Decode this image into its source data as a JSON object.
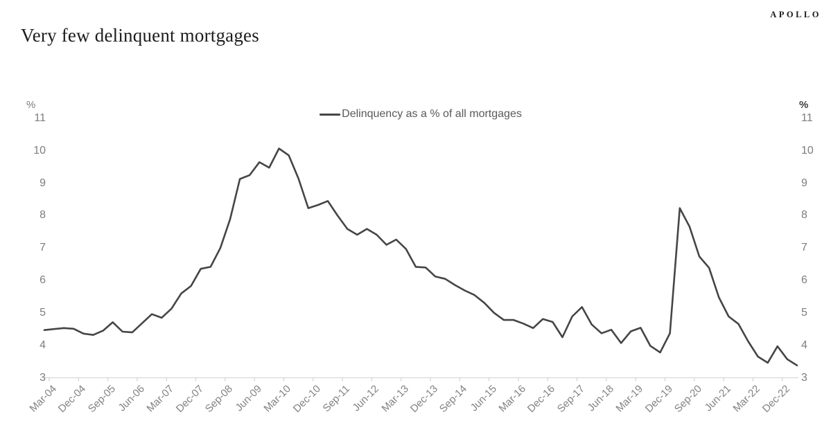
{
  "header": {
    "title": "Very few delinquent mortgages",
    "brand": "APOLLO"
  },
  "legend": {
    "label": "Delinquency as a % of all mortgages"
  },
  "axes": {
    "left_unit": "%",
    "right_unit": "%"
  },
  "colors": {
    "line": "#454545",
    "axis_line": "#d9d9d9",
    "tick_mark": "#c9c9c9",
    "y_label": "#7d7d7d",
    "x_label": "#828282",
    "legend_text": "#595959",
    "title_text": "#1c1c1c"
  },
  "chart_data": {
    "type": "line",
    "title": "Very few delinquent mortgages",
    "series_name": "Delinquency as a % of all mortgages",
    "xlabel": "",
    "ylabel": "%",
    "ylim": [
      3,
      11
    ],
    "y_ticks": [
      11,
      10,
      9,
      8,
      7,
      6,
      5,
      4,
      3
    ],
    "grid": "none",
    "legend_position": "top-center",
    "frequency": "quarterly",
    "x_start": "Mar-04",
    "x_step_months": 3,
    "n_points": 78,
    "x_tick_labels": [
      "Mar-04",
      "Dec-04",
      "Sep-05",
      "Jun-06",
      "Mar-07",
      "Dec-07",
      "Sep-08",
      "Jun-09",
      "Mar-10",
      "Dec-10",
      "Sep-11",
      "Jun-12",
      "Mar-13",
      "Dec-13",
      "Sep-14",
      "Jun-15",
      "Mar-16",
      "Dec-16",
      "Sep-17",
      "Jun-18",
      "Mar-19",
      "Dec-19",
      "Sep-20",
      "Jun-21",
      "Mar-22",
      "Dec-22"
    ],
    "x_tick_every_n_points": 3,
    "values": [
      4.46,
      4.49,
      4.52,
      4.5,
      4.35,
      4.31,
      4.44,
      4.7,
      4.41,
      4.39,
      4.67,
      4.95,
      4.84,
      5.12,
      5.59,
      5.82,
      6.35,
      6.41,
      6.99,
      7.88,
      9.12,
      9.24,
      9.64,
      9.47,
      10.06,
      9.85,
      9.13,
      8.22,
      8.32,
      8.44,
      7.99,
      7.58,
      7.4,
      7.58,
      7.4,
      7.09,
      7.25,
      6.96,
      6.41,
      6.39,
      6.11,
      6.04,
      5.85,
      5.68,
      5.54,
      5.3,
      4.99,
      4.77,
      4.77,
      4.66,
      4.52,
      4.8,
      4.71,
      4.24,
      4.88,
      5.17,
      4.63,
      4.36,
      4.47,
      4.06,
      4.42,
      4.53,
      3.97,
      3.77,
      4.36,
      8.22,
      7.65,
      6.73,
      6.38,
      5.47,
      4.88,
      4.65,
      4.11,
      3.64,
      3.45,
      3.96,
      3.56,
      3.37
    ]
  }
}
